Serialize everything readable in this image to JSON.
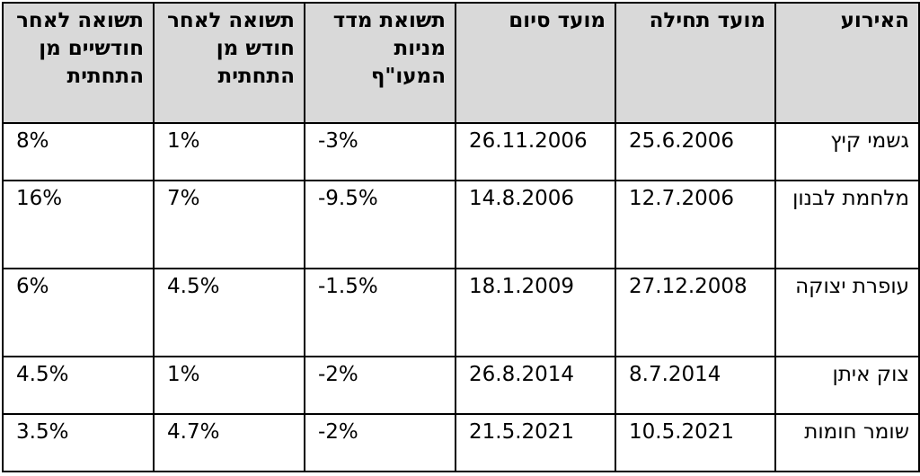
{
  "table": {
    "headers": [
      "האירוע",
      "מועד תחילה",
      "מועד סיום",
      "תשואת מדד מניות המעו\"ף",
      "תשואה לאחר חודש מן התחתית",
      "תשואה לאחר חודשיים מן התחתית"
    ],
    "rows": [
      [
        "גשמי קיץ",
        "25.6.2006",
        "26.11.2006",
        "-3%",
        "1%",
        "8%"
      ],
      [
        "מלחמת לבנון",
        "12.7.2006",
        "14.8.2006",
        "-9.5%",
        "7%",
        "16%"
      ],
      [
        "עופרת יצוקה",
        "27.12.2008",
        "18.1.2009",
        "-1.5%",
        "4.5%",
        "6%"
      ],
      [
        "צוק איתן",
        "8.7.2014",
        "26.8.2014",
        "-2%",
        "1%",
        "4.5%"
      ],
      [
        "שומר חומות",
        "10.5.2021",
        "21.5.2021",
        "-2%",
        "4.7%",
        "3.5%"
      ]
    ]
  }
}
